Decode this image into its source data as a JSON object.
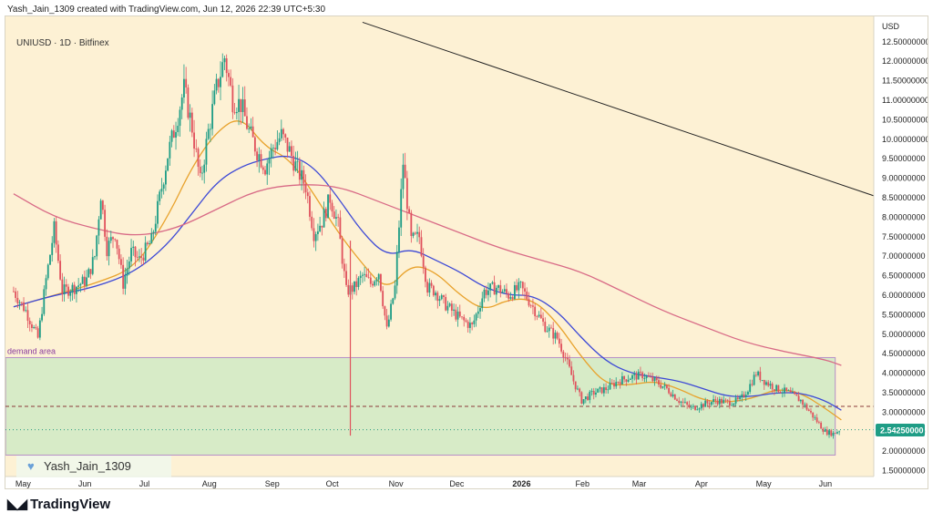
{
  "header": {
    "caption": "Yash_Jain_1309 created with TradingView.com, Jun 12, 2026 22:39 UTC+5:30",
    "symbol_legend": "UNIUSD · 1D · Bitfinex"
  },
  "footer": {
    "brand": "TradingView",
    "logo_icon": "tradingview-logo-icon"
  },
  "watermark": {
    "text": "Yash_Jain_1309",
    "icon": "heart-icon"
  },
  "colors": {
    "background": "#fdf1d4",
    "zone_fill": "#d7ebc7",
    "zone_border": "#b58fc7",
    "up_candle": "#1f9d86",
    "down_candle": "#e0525d",
    "ma_fast": "#e8a22c",
    "ma_mid": "#3d49d6",
    "ma_slow": "#d86a86",
    "trendline": "#222222",
    "price_label_bg": "#1f9d86",
    "dashed_level": "#8b3a3a",
    "dotted_level": "#2a9c80"
  },
  "chart_data": {
    "type": "candlestick",
    "title": "UNIUSD · 1D · Bitfinex",
    "y_axis_unit": "USD",
    "ylim": [
      1.35,
      13.15
    ],
    "y_ticks": [
      "12.50000000",
      "12.00000000",
      "11.50000000",
      "11.00000000",
      "10.50000000",
      "10.00000000",
      "9.50000000",
      "9.00000000",
      "8.50000000",
      "8.00000000",
      "7.50000000",
      "7.00000000",
      "6.50000000",
      "6.00000000",
      "5.50000000",
      "5.00000000",
      "4.50000000",
      "4.00000000",
      "3.50000000",
      "3.00000000",
      "2.50000000",
      "2.00000000",
      "1.50000000"
    ],
    "x_ticks": [
      {
        "label": "May",
        "day": 0
      },
      {
        "label": "Jun",
        "day": 31
      },
      {
        "label": "Jul",
        "day": 61
      },
      {
        "label": "Aug",
        "day": 92
      },
      {
        "label": "Sep",
        "day": 123
      },
      {
        "label": "Oct",
        "day": 153
      },
      {
        "label": "Nov",
        "day": 184
      },
      {
        "label": "Dec",
        "day": 214
      },
      {
        "label": "2026",
        "day": 245
      },
      {
        "label": "Feb",
        "day": 276
      },
      {
        "label": "Mar",
        "day": 304
      },
      {
        "label": "Apr",
        "day": 335
      },
      {
        "label": "May",
        "day": 365
      },
      {
        "label": "Jun",
        "day": 396
      }
    ],
    "x_range_days": [
      -4,
      424
    ],
    "last_price": "2.54250000",
    "last_price_value": 2.5425,
    "candle_anchors": [
      [
        0,
        6.1
      ],
      [
        6,
        5.6
      ],
      [
        12,
        4.9
      ],
      [
        16,
        6.4
      ],
      [
        20,
        7.7
      ],
      [
        24,
        6.1
      ],
      [
        30,
        6.2
      ],
      [
        36,
        6.4
      ],
      [
        40,
        7.0
      ],
      [
        43,
        8.6
      ],
      [
        46,
        7.2
      ],
      [
        50,
        7.6
      ],
      [
        54,
        6.3
      ],
      [
        58,
        7.1
      ],
      [
        62,
        6.9
      ],
      [
        68,
        7.4
      ],
      [
        72,
        8.5
      ],
      [
        76,
        9.6
      ],
      [
        80,
        10.4
      ],
      [
        84,
        11.3
      ],
      [
        88,
        10.3
      ],
      [
        92,
        8.9
      ],
      [
        96,
        10.2
      ],
      [
        100,
        11.3
      ],
      [
        104,
        12.1
      ],
      [
        108,
        11.0
      ],
      [
        112,
        10.9
      ],
      [
        116,
        10.2
      ],
      [
        120,
        9.7
      ],
      [
        124,
        9.3
      ],
      [
        128,
        9.8
      ],
      [
        132,
        10.1
      ],
      [
        136,
        9.7
      ],
      [
        140,
        9.2
      ],
      [
        144,
        8.8
      ],
      [
        148,
        7.6
      ],
      [
        152,
        7.9
      ],
      [
        156,
        8.5
      ],
      [
        160,
        7.8
      ],
      [
        164,
        6.1
      ],
      [
        168,
        6.2
      ],
      [
        172,
        6.5
      ],
      [
        176,
        6.3
      ],
      [
        180,
        6.6
      ],
      [
        184,
        5.1
      ],
      [
        188,
        6.2
      ],
      [
        192,
        9.4
      ],
      [
        196,
        7.4
      ],
      [
        200,
        7.5
      ],
      [
        204,
        6.2
      ],
      [
        208,
        6.1
      ],
      [
        212,
        5.8
      ],
      [
        216,
        5.6
      ],
      [
        220,
        5.4
      ],
      [
        226,
        5.2
      ],
      [
        232,
        6.1
      ],
      [
        238,
        6.2
      ],
      [
        244,
        6.0
      ],
      [
        250,
        6.2
      ],
      [
        256,
        5.7
      ],
      [
        262,
        5.2
      ],
      [
        268,
        4.9
      ],
      [
        272,
        4.4
      ],
      [
        276,
        3.8
      ],
      [
        280,
        3.3
      ],
      [
        286,
        3.5
      ],
      [
        292,
        3.6
      ],
      [
        298,
        3.8
      ],
      [
        304,
        3.9
      ],
      [
        310,
        3.95
      ],
      [
        316,
        3.8
      ],
      [
        322,
        3.6
      ],
      [
        328,
        3.3
      ],
      [
        334,
        3.1
      ],
      [
        340,
        3.2
      ],
      [
        346,
        3.3
      ],
      [
        352,
        3.25
      ],
      [
        358,
        3.3
      ],
      [
        362,
        3.6
      ],
      [
        366,
        4.0
      ],
      [
        370,
        3.8
      ],
      [
        376,
        3.6
      ],
      [
        382,
        3.5
      ],
      [
        388,
        3.3
      ],
      [
        394,
        2.9
      ],
      [
        400,
        2.5
      ],
      [
        404,
        2.45
      ],
      [
        407,
        2.54
      ]
    ],
    "series": [
      {
        "name": "",
        "kind": "ma_fast",
        "points": [
          [
            0,
            5.7
          ],
          [
            20,
            6.0
          ],
          [
            40,
            6.3
          ],
          [
            60,
            6.7
          ],
          [
            76,
            8.0
          ],
          [
            88,
            9.3
          ],
          [
            100,
            10.2
          ],
          [
            112,
            10.6
          ],
          [
            124,
            9.8
          ],
          [
            136,
            9.5
          ],
          [
            148,
            8.6
          ],
          [
            160,
            7.6
          ],
          [
            172,
            6.8
          ],
          [
            184,
            6.1
          ],
          [
            196,
            6.8
          ],
          [
            208,
            6.6
          ],
          [
            220,
            6.0
          ],
          [
            232,
            5.6
          ],
          [
            244,
            5.9
          ],
          [
            256,
            5.9
          ],
          [
            268,
            5.3
          ],
          [
            280,
            4.4
          ],
          [
            292,
            3.7
          ],
          [
            304,
            3.7
          ],
          [
            316,
            3.8
          ],
          [
            328,
            3.6
          ],
          [
            340,
            3.3
          ],
          [
            352,
            3.25
          ],
          [
            364,
            3.35
          ],
          [
            376,
            3.6
          ],
          [
            388,
            3.5
          ],
          [
            400,
            3.1
          ],
          [
            408,
            2.8
          ]
        ]
      },
      {
        "name": "",
        "kind": "ma_mid",
        "points": [
          [
            0,
            5.7
          ],
          [
            20,
            6.0
          ],
          [
            40,
            6.2
          ],
          [
            60,
            6.6
          ],
          [
            76,
            7.3
          ],
          [
            88,
            8.1
          ],
          [
            100,
            8.9
          ],
          [
            112,
            9.3
          ],
          [
            124,
            9.5
          ],
          [
            136,
            9.6
          ],
          [
            148,
            9.3
          ],
          [
            160,
            8.5
          ],
          [
            172,
            7.6
          ],
          [
            184,
            7.0
          ],
          [
            196,
            7.2
          ],
          [
            208,
            6.9
          ],
          [
            220,
            6.6
          ],
          [
            232,
            6.2
          ],
          [
            244,
            6.0
          ],
          [
            256,
            6.0
          ],
          [
            268,
            5.6
          ],
          [
            280,
            4.9
          ],
          [
            292,
            4.3
          ],
          [
            304,
            4.0
          ],
          [
            316,
            3.9
          ],
          [
            328,
            3.8
          ],
          [
            340,
            3.6
          ],
          [
            352,
            3.4
          ],
          [
            364,
            3.4
          ],
          [
            376,
            3.5
          ],
          [
            388,
            3.5
          ],
          [
            400,
            3.3
          ],
          [
            408,
            3.05
          ]
        ]
      },
      {
        "name": "",
        "kind": "ma_slow",
        "points": [
          [
            0,
            8.6
          ],
          [
            20,
            8.0
          ],
          [
            40,
            7.7
          ],
          [
            60,
            7.5
          ],
          [
            80,
            7.7
          ],
          [
            100,
            8.2
          ],
          [
            120,
            8.7
          ],
          [
            140,
            8.85
          ],
          [
            160,
            8.8
          ],
          [
            180,
            8.4
          ],
          [
            200,
            8.0
          ],
          [
            220,
            7.6
          ],
          [
            240,
            7.2
          ],
          [
            260,
            6.9
          ],
          [
            280,
            6.6
          ],
          [
            300,
            6.1
          ],
          [
            320,
            5.6
          ],
          [
            340,
            5.2
          ],
          [
            360,
            4.8
          ],
          [
            380,
            4.55
          ],
          [
            400,
            4.35
          ],
          [
            408,
            4.2
          ]
        ]
      }
    ],
    "annotations": {
      "zone": {
        "label": "demand area",
        "top": 4.4,
        "bottom": 1.9
      },
      "trendline": {
        "from": [
          172,
          13.0
        ],
        "to": [
          424,
          8.55
        ]
      },
      "dashed_level": 3.15,
      "dotted_level": 2.55,
      "spike": {
        "day": 166,
        "low": 2.4,
        "high": 7.4
      }
    }
  }
}
